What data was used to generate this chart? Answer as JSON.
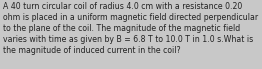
{
  "text": "A 40 turn circular coil of radius 4.0 cm with a resistance 0.20\nohm is placed in a uniform magnetic field directed perpendicular\nto the plane of the coil. The magnitude of the magnetic field\nvaries with time as given by B = 6.8 T to 10.0 T in 1.0 s.What is\nthe magnitude of induced current in the coil?",
  "bg_color": "#c8c8c8",
  "text_color": "#222222",
  "font_size": 5.6,
  "fig_width": 2.62,
  "fig_height": 0.69,
  "dpi": 100
}
